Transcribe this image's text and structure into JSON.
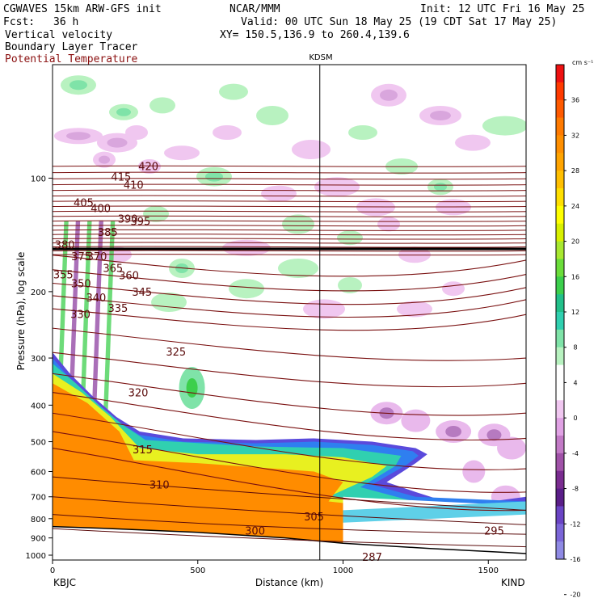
{
  "header": {
    "model": "CGWAVES 15km ARW-GFS init",
    "org": "NCAR/MMM",
    "init": "Init: 12 UTC Fri 16 May 25",
    "fcst_label": "Fcst:",
    "fcst_value": "36 h",
    "valid": "Valid: 00 UTC Sun 18 May 25 (19 CDT Sat 17 May 25)",
    "field1": "Vertical velocity",
    "xy": "XY= 150.5,136.9 to 260.4,139.6",
    "field2": "Boundary Layer Tracer",
    "field3": "Potential Temperature",
    "station_marker": "KDSM"
  },
  "chart_data": {
    "type": "heatmap",
    "xlabel": "Distance (km)",
    "ylabel": "Pressure (hPa), log scale",
    "x_ticks": [
      0,
      500,
      1000,
      1500
    ],
    "x_range": [
      0,
      1630
    ],
    "x_start_label": "KBJC",
    "x_end_label": "KIND",
    "y_ticks": [
      100,
      200,
      300,
      400,
      500,
      600,
      700,
      800,
      900,
      1000
    ],
    "y_range": [
      1030,
      50
    ],
    "y_log": true,
    "marker_x": 920,
    "colorbar": {
      "unit": "cm s⁻¹",
      "ticks": [
        36,
        32,
        28,
        24,
        20,
        16,
        12,
        8,
        4,
        0,
        -4,
        -8,
        -12,
        -16,
        -20
      ],
      "colors": [
        "#ee1111",
        "#ff3a00",
        "#ff5a00",
        "#ff7a00",
        "#ff8f00",
        "#ffa400",
        "#ffbf00",
        "#ffdf00",
        "#ffff00",
        "#d8f000",
        "#a8e830",
        "#6bdd3a",
        "#3ccf4c",
        "#22c08a",
        "#30d0b0",
        "#7fe3a8",
        "#b8f2c0",
        "#ffffff",
        "#ffffff",
        "#f0c7f0",
        "#e0a2e4",
        "#c27ac6",
        "#a052a8",
        "#7a2c90",
        "#5a1e88",
        "#6a44c4",
        "#7b66d8",
        "#8f8ae4"
      ]
    },
    "theta_isentropes": [
      {
        "label": "420",
        "x": 330,
        "p": 93
      },
      {
        "label": "415",
        "x": 236,
        "p": 99
      },
      {
        "label": "410",
        "x": 279,
        "p": 104
      },
      {
        "label": "405",
        "x": 107,
        "p": 116
      },
      {
        "label": "400",
        "x": 166,
        "p": 120
      },
      {
        "label": "395",
        "x": 303,
        "p": 130
      },
      {
        "label": "390",
        "x": 259,
        "p": 128
      },
      {
        "label": "385",
        "x": 190,
        "p": 139
      },
      {
        "label": "380",
        "x": 42,
        "p": 150
      },
      {
        "label": "375",
        "x": 99,
        "p": 161
      },
      {
        "label": "370",
        "x": 153,
        "p": 161
      },
      {
        "label": "365",
        "x": 208,
        "p": 173
      },
      {
        "label": "360",
        "x": 263,
        "p": 181
      },
      {
        "label": "355",
        "x": 37,
        "p": 180
      },
      {
        "label": "350",
        "x": 98,
        "p": 190
      },
      {
        "label": "345",
        "x": 308,
        "p": 200
      },
      {
        "label": "340",
        "x": 150,
        "p": 207
      },
      {
        "label": "335",
        "x": 225,
        "p": 221
      },
      {
        "label": "330",
        "x": 96,
        "p": 229
      },
      {
        "label": "325",
        "x": 425,
        "p": 288
      },
      {
        "label": "320",
        "x": 295,
        "p": 370
      },
      {
        "label": "315",
        "x": 310,
        "p": 524
      },
      {
        "label": "310",
        "x": 368,
        "p": 650
      },
      {
        "label": "305",
        "x": 900,
        "p": 790
      },
      {
        "label": "300",
        "x": 697,
        "p": 860
      },
      {
        "label": "295",
        "x": 1520,
        "p": 860
      },
      {
        "label": "287",
        "x": 1100,
        "p": 1010
      }
    ],
    "w_regions": [
      {
        "sign": "up",
        "x": [
          30,
          200
        ],
        "p": [
          55,
          120
        ],
        "w": 6
      },
      {
        "sign": "down",
        "x": [
          0,
          300
        ],
        "p": [
          220,
          300
        ],
        "w": -4
      }
    ]
  }
}
